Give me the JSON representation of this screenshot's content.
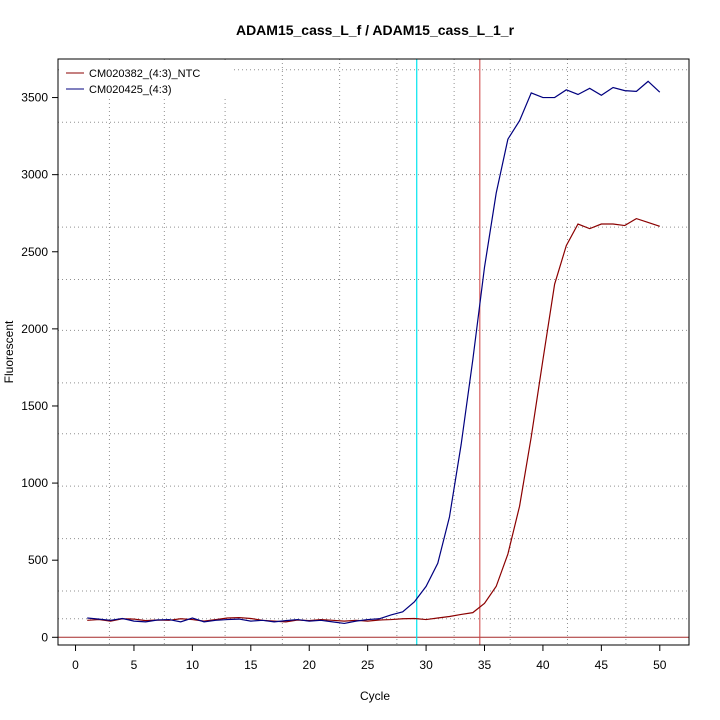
{
  "chart_data": {
    "type": "line",
    "title": "ADAM15_cass_L_f / ADAM15_cass_L_1_r",
    "xlabel": "Cycle",
    "ylabel": "Fluorescent",
    "xlim": [
      -1.5,
      52.5
    ],
    "ylim": [
      -50,
      3750
    ],
    "xticks": [
      "0",
      "5",
      "10",
      "15",
      "20",
      "25",
      "30",
      "35",
      "40",
      "45",
      "50"
    ],
    "yticks": [
      "0",
      "500",
      "1000",
      "1500",
      "2000",
      "2500",
      "3000",
      "3500"
    ],
    "grid": true,
    "legend_position": "top-left",
    "vertical_grid_x": [
      2.9,
      7.6,
      12.8,
      17.7,
      22.6,
      27.5,
      32.4,
      37.2,
      42.1,
      47.1
    ],
    "horizontal_grid_y": [
      120,
      300,
      640,
      980,
      1320,
      1650,
      1990,
      2320,
      2660,
      3000,
      3340,
      3680
    ],
    "threshold_line_x": 29.2,
    "ct_line_x": 34.6,
    "baseline_y": 0,
    "x": [
      1,
      2,
      3,
      4,
      5,
      6,
      7,
      8,
      9,
      10,
      11,
      12,
      13,
      14,
      15,
      16,
      17,
      18,
      19,
      20,
      21,
      22,
      23,
      24,
      25,
      26,
      27,
      28,
      29,
      30,
      31,
      32,
      33,
      34,
      35,
      36,
      37,
      38,
      39,
      40,
      41,
      42,
      43,
      44,
      45,
      46,
      47,
      48,
      49,
      50
    ],
    "series": [
      {
        "name": "CM020382_(4:3)_NTC",
        "color": "#8b0000",
        "values": [
          110,
          115,
          105,
          120,
          118,
          108,
          112,
          110,
          120,
          115,
          105,
          115,
          125,
          128,
          122,
          110,
          105,
          100,
          112,
          108,
          115,
          110,
          105,
          110,
          105,
          112,
          115,
          120,
          122,
          115,
          125,
          135,
          148,
          160,
          220,
          330,
          540,
          850,
          1300,
          1800,
          2290,
          2540,
          2680,
          2650,
          2680,
          2680,
          2670,
          2715,
          2690,
          2665
        ]
      },
      {
        "name": "CM020425_(4:3)",
        "color": "#00007f",
        "values": [
          125,
          118,
          110,
          122,
          105,
          100,
          112,
          115,
          100,
          125,
          100,
          110,
          115,
          118,
          105,
          110,
          100,
          108,
          115,
          105,
          110,
          100,
          90,
          105,
          115,
          120,
          145,
          165,
          230,
          330,
          480,
          780,
          1250,
          1800,
          2400,
          2880,
          3230,
          3350,
          3530,
          3500,
          3500,
          3550,
          3520,
          3560,
          3515,
          3565,
          3545,
          3540,
          3605,
          3535
        ]
      }
    ]
  },
  "colors": {
    "threshold_line": "#00e5ee",
    "ct_line": "#cd3f3f",
    "baseline": "#a52a2a",
    "grid": "#909090"
  }
}
